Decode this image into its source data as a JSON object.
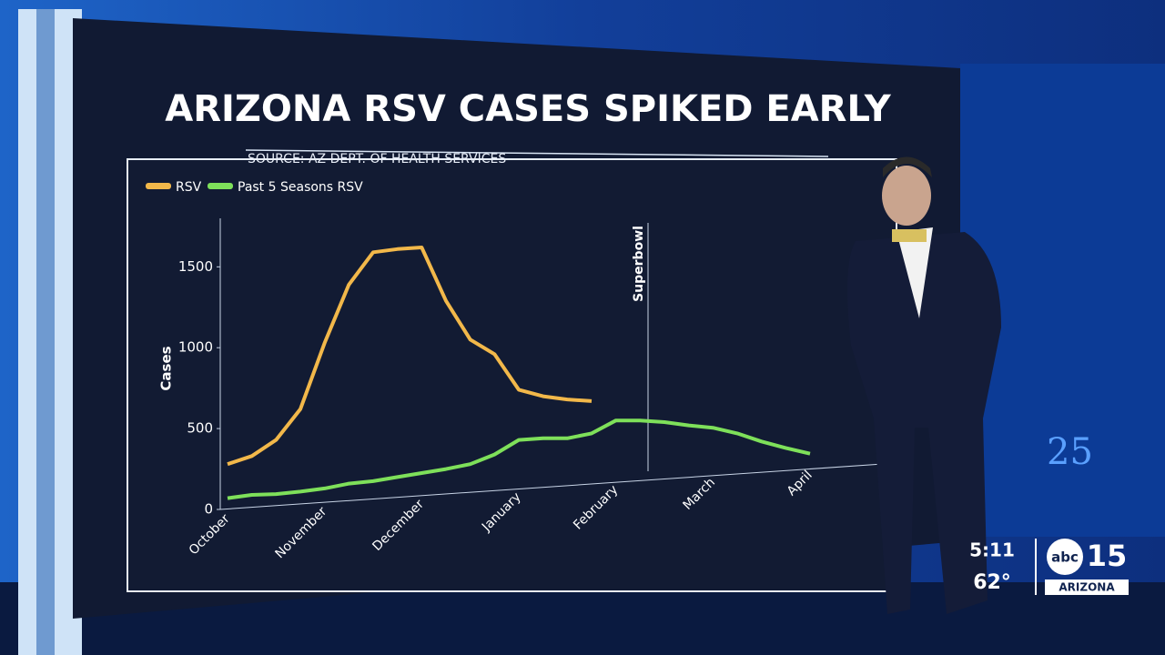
{
  "chart_data": {
    "type": "line",
    "title": "ARIZONA RSV CASES SPIKED EARLY",
    "subtitle": "SOURCE: AZ DEPT. OF HEALTH SERVICES",
    "y_label": "Cases",
    "annotation": "Superbowl",
    "categories": [
      "October",
      null,
      null,
      null,
      "November",
      null,
      null,
      null,
      "December",
      null,
      null,
      null,
      "January",
      null,
      null,
      null,
      "February",
      null,
      null,
      null,
      "March",
      null,
      null,
      null,
      "April"
    ],
    "series": [
      {
        "name": "RSV",
        "color": "#f2b84a",
        "values": [
          280,
          330,
          430,
          620,
          1030,
          1390,
          1590,
          1610,
          1620,
          1290,
          1050,
          960,
          740,
          700,
          680,
          670,
          null,
          null,
          null,
          null,
          null,
          null,
          null,
          null,
          null
        ]
      },
      {
        "name": "Past 5 Seasons RSV",
        "color": "#7ee05a",
        "values": [
          70,
          90,
          95,
          110,
          130,
          160,
          175,
          200,
          225,
          250,
          280,
          340,
          430,
          440,
          440,
          470,
          550,
          550,
          540,
          520,
          505,
          470,
          420,
          380,
          345
        ]
      }
    ],
    "ylim": [
      0,
      1800
    ],
    "yticks": [
      0,
      500,
      1000,
      1500
    ],
    "legend": "top-left"
  },
  "overlay": {
    "time": "5:11",
    "temperature": "62°",
    "logo_abc": "abc",
    "logo_number": "15",
    "logo_region": "ARIZONA"
  }
}
